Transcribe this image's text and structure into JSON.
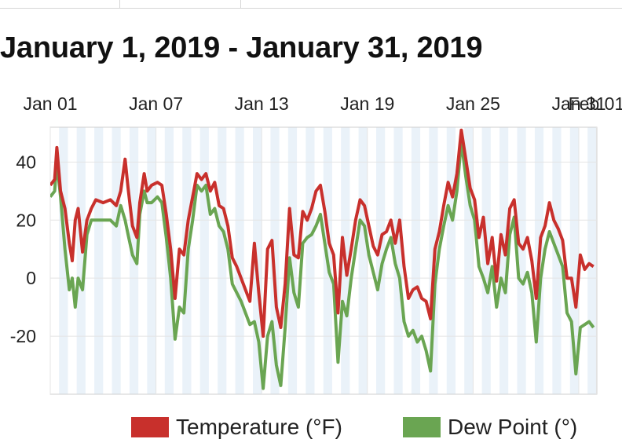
{
  "title": "January 1, 2019 - January 31, 2019",
  "colors": {
    "temperature": "#c8302c",
    "dew_point": "#6aa552",
    "band": "#eaf2f9",
    "grid": "#e4e4e4",
    "axis": "#cfcfcf"
  },
  "chart_data": {
    "type": "line",
    "title": "January 1, 2019 - January 31, 2019",
    "xlabel": "",
    "ylabel": "",
    "xlim": [
      "2019-01-01",
      "2019-02-01"
    ],
    "ylim": [
      -40,
      52
    ],
    "x_ticks": [
      {
        "date": "2019-01-01",
        "label": "Jan 01"
      },
      {
        "date": "2019-01-07",
        "label": "Jan 07"
      },
      {
        "date": "2019-01-13",
        "label": "Jan 13"
      },
      {
        "date": "2019-01-19",
        "label": "Jan 19"
      },
      {
        "date": "2019-01-25",
        "label": "Jan 25"
      },
      {
        "date": "2019-01-31",
        "label": "Jan 31"
      },
      {
        "date": "2019-02-01",
        "label": "Feb 01"
      }
    ],
    "y_ticks": [
      40,
      20,
      0,
      -20
    ],
    "grid": true,
    "legend": "bottom",
    "series": [
      {
        "name": "Temperature (°F)",
        "points": [
          [
            "2019-01-01T00:00",
            32
          ],
          [
            "2019-01-01T06:00",
            34
          ],
          [
            "2019-01-01T09:00",
            45
          ],
          [
            "2019-01-01T14:00",
            30
          ],
          [
            "2019-01-01T20:00",
            24
          ],
          [
            "2019-01-02T02:00",
            12
          ],
          [
            "2019-01-02T06:00",
            6
          ],
          [
            "2019-01-02T10:00",
            20
          ],
          [
            "2019-01-02T14:00",
            24
          ],
          [
            "2019-01-02T20:00",
            9
          ],
          [
            "2019-01-03T02:00",
            20
          ],
          [
            "2019-01-03T08:00",
            24
          ],
          [
            "2019-01-03T14:00",
            27
          ],
          [
            "2019-01-04T00:00",
            26
          ],
          [
            "2019-01-04T10:00",
            27
          ],
          [
            "2019-01-04T18:00",
            25
          ],
          [
            "2019-01-05T00:00",
            30
          ],
          [
            "2019-01-05T06:00",
            41
          ],
          [
            "2019-01-05T10:00",
            31
          ],
          [
            "2019-01-05T16:00",
            18
          ],
          [
            "2019-01-05T22:00",
            14
          ],
          [
            "2019-01-06T02:00",
            26
          ],
          [
            "2019-01-06T08:00",
            36
          ],
          [
            "2019-01-06T12:00",
            30
          ],
          [
            "2019-01-06T18:00",
            32
          ],
          [
            "2019-01-07T02:00",
            33
          ],
          [
            "2019-01-07T08:00",
            32
          ],
          [
            "2019-01-07T14:00",
            22
          ],
          [
            "2019-01-07T20:00",
            10
          ],
          [
            "2019-01-08T02:00",
            -7
          ],
          [
            "2019-01-08T08:00",
            10
          ],
          [
            "2019-01-08T14:00",
            8
          ],
          [
            "2019-01-08T20:00",
            20
          ],
          [
            "2019-01-09T02:00",
            28
          ],
          [
            "2019-01-09T08:00",
            36
          ],
          [
            "2019-01-09T14:00",
            34
          ],
          [
            "2019-01-09T20:00",
            36
          ],
          [
            "2019-01-10T02:00",
            30
          ],
          [
            "2019-01-10T08:00",
            33
          ],
          [
            "2019-01-10T14:00",
            25
          ],
          [
            "2019-01-10T20:00",
            24
          ],
          [
            "2019-01-11T02:00",
            18
          ],
          [
            "2019-01-11T08:00",
            7
          ],
          [
            "2019-01-11T14:00",
            4
          ],
          [
            "2019-01-11T20:00",
            0
          ],
          [
            "2019-01-12T02:00",
            -4
          ],
          [
            "2019-01-12T08:00",
            -8
          ],
          [
            "2019-01-12T14:00",
            12
          ],
          [
            "2019-01-12T20:00",
            -5
          ],
          [
            "2019-01-13T02:00",
            -20
          ],
          [
            "2019-01-13T08:00",
            10
          ],
          [
            "2019-01-13T14:00",
            13
          ],
          [
            "2019-01-13T20:00",
            -10
          ],
          [
            "2019-01-14T02:00",
            -17
          ],
          [
            "2019-01-14T08:00",
            -2
          ],
          [
            "2019-01-14T14:00",
            24
          ],
          [
            "2019-01-14T20:00",
            8
          ],
          [
            "2019-01-15T02:00",
            7
          ],
          [
            "2019-01-15T08:00",
            23
          ],
          [
            "2019-01-15T14:00",
            20
          ],
          [
            "2019-01-15T20:00",
            24
          ],
          [
            "2019-01-16T02:00",
            30
          ],
          [
            "2019-01-16T08:00",
            32
          ],
          [
            "2019-01-16T14:00",
            23
          ],
          [
            "2019-01-16T20:00",
            12
          ],
          [
            "2019-01-17T02:00",
            8
          ],
          [
            "2019-01-17T08:00",
            -12
          ],
          [
            "2019-01-17T14:00",
            14
          ],
          [
            "2019-01-17T20:00",
            1
          ],
          [
            "2019-01-18T02:00",
            10
          ],
          [
            "2019-01-18T08:00",
            20
          ],
          [
            "2019-01-18T14:00",
            27
          ],
          [
            "2019-01-18T20:00",
            25
          ],
          [
            "2019-01-19T02:00",
            18
          ],
          [
            "2019-01-19T08:00",
            11
          ],
          [
            "2019-01-19T14:00",
            8
          ],
          [
            "2019-01-19T20:00",
            15
          ],
          [
            "2019-01-20T02:00",
            16
          ],
          [
            "2019-01-20T08:00",
            20
          ],
          [
            "2019-01-20T14:00",
            12
          ],
          [
            "2019-01-20T20:00",
            20
          ],
          [
            "2019-01-21T02:00",
            4
          ],
          [
            "2019-01-21T08:00",
            -7
          ],
          [
            "2019-01-21T14:00",
            -4
          ],
          [
            "2019-01-21T20:00",
            -3
          ],
          [
            "2019-01-22T02:00",
            -7
          ],
          [
            "2019-01-22T08:00",
            -8
          ],
          [
            "2019-01-22T14:00",
            -14
          ],
          [
            "2019-01-22T20:00",
            10
          ],
          [
            "2019-01-23T02:00",
            16
          ],
          [
            "2019-01-23T08:00",
            25
          ],
          [
            "2019-01-23T14:00",
            33
          ],
          [
            "2019-01-23T20:00",
            28
          ],
          [
            "2019-01-24T02:00",
            36
          ],
          [
            "2019-01-24T08:00",
            51
          ],
          [
            "2019-01-24T14:00",
            41
          ],
          [
            "2019-01-24T20:00",
            31
          ],
          [
            "2019-01-25T02:00",
            27
          ],
          [
            "2019-01-25T08:00",
            14
          ],
          [
            "2019-01-25T14:00",
            21
          ],
          [
            "2019-01-25T20:00",
            5
          ],
          [
            "2019-01-26T02:00",
            14
          ],
          [
            "2019-01-26T08:00",
            -1
          ],
          [
            "2019-01-26T14:00",
            15
          ],
          [
            "2019-01-26T20:00",
            8
          ],
          [
            "2019-01-27T02:00",
            24
          ],
          [
            "2019-01-27T08:00",
            27
          ],
          [
            "2019-01-27T14:00",
            12
          ],
          [
            "2019-01-27T20:00",
            10
          ],
          [
            "2019-01-28T02:00",
            14
          ],
          [
            "2019-01-28T08:00",
            6
          ],
          [
            "2019-01-28T14:00",
            -7
          ],
          [
            "2019-01-28T20:00",
            14
          ],
          [
            "2019-01-29T02:00",
            18
          ],
          [
            "2019-01-29T08:00",
            26
          ],
          [
            "2019-01-29T14:00",
            20
          ],
          [
            "2019-01-29T20:00",
            17
          ],
          [
            "2019-01-30T02:00",
            13
          ],
          [
            "2019-01-30T08:00",
            0
          ],
          [
            "2019-01-30T14:00",
            0
          ],
          [
            "2019-01-30T20:00",
            -10
          ],
          [
            "2019-01-31T02:00",
            8
          ],
          [
            "2019-01-31T08:00",
            3
          ],
          [
            "2019-01-31T14:00",
            5
          ],
          [
            "2019-01-31T20:00",
            4
          ]
        ]
      },
      {
        "name": "Dew Point (°)",
        "points": [
          [
            "2019-01-01T00:00",
            28
          ],
          [
            "2019-01-01T06:00",
            30
          ],
          [
            "2019-01-01T09:00",
            40
          ],
          [
            "2019-01-01T14:00",
            28
          ],
          [
            "2019-01-01T20:00",
            10
          ],
          [
            "2019-01-02T02:00",
            -4
          ],
          [
            "2019-01-02T06:00",
            0
          ],
          [
            "2019-01-02T10:00",
            -10
          ],
          [
            "2019-01-02T14:00",
            0
          ],
          [
            "2019-01-02T20:00",
            -4
          ],
          [
            "2019-01-03T02:00",
            15
          ],
          [
            "2019-01-03T08:00",
            20
          ],
          [
            "2019-01-03T14:00",
            20
          ],
          [
            "2019-01-04T00:00",
            20
          ],
          [
            "2019-01-04T10:00",
            20
          ],
          [
            "2019-01-04T18:00",
            18
          ],
          [
            "2019-01-05T00:00",
            25
          ],
          [
            "2019-01-05T06:00",
            20
          ],
          [
            "2019-01-05T10:00",
            15
          ],
          [
            "2019-01-05T16:00",
            8
          ],
          [
            "2019-01-05T22:00",
            5
          ],
          [
            "2019-01-06T02:00",
            22
          ],
          [
            "2019-01-06T08:00",
            30
          ],
          [
            "2019-01-06T12:00",
            26
          ],
          [
            "2019-01-06T18:00",
            26
          ],
          [
            "2019-01-07T02:00",
            28
          ],
          [
            "2019-01-07T08:00",
            26
          ],
          [
            "2019-01-07T14:00",
            14
          ],
          [
            "2019-01-07T20:00",
            0
          ],
          [
            "2019-01-08T02:00",
            -21
          ],
          [
            "2019-01-08T08:00",
            -10
          ],
          [
            "2019-01-08T14:00",
            -12
          ],
          [
            "2019-01-08T20:00",
            10
          ],
          [
            "2019-01-09T02:00",
            20
          ],
          [
            "2019-01-09T08:00",
            32
          ],
          [
            "2019-01-09T14:00",
            30
          ],
          [
            "2019-01-09T20:00",
            32
          ],
          [
            "2019-01-10T02:00",
            22
          ],
          [
            "2019-01-10T08:00",
            24
          ],
          [
            "2019-01-10T14:00",
            18
          ],
          [
            "2019-01-10T20:00",
            16
          ],
          [
            "2019-01-11T02:00",
            10
          ],
          [
            "2019-01-11T08:00",
            -2
          ],
          [
            "2019-01-11T14:00",
            -5
          ],
          [
            "2019-01-11T20:00",
            -8
          ],
          [
            "2019-01-12T02:00",
            -12
          ],
          [
            "2019-01-12T08:00",
            -16
          ],
          [
            "2019-01-12T14:00",
            -15
          ],
          [
            "2019-01-12T20:00",
            -22
          ],
          [
            "2019-01-13T02:00",
            -38
          ],
          [
            "2019-01-13T08:00",
            -20
          ],
          [
            "2019-01-13T14:00",
            -15
          ],
          [
            "2019-01-13T20:00",
            -30
          ],
          [
            "2019-01-14T02:00",
            -37
          ],
          [
            "2019-01-14T08:00",
            -17
          ],
          [
            "2019-01-14T14:00",
            7
          ],
          [
            "2019-01-14T20:00",
            -5
          ],
          [
            "2019-01-15T02:00",
            -10
          ],
          [
            "2019-01-15T08:00",
            12
          ],
          [
            "2019-01-15T14:00",
            14
          ],
          [
            "2019-01-15T20:00",
            15
          ],
          [
            "2019-01-16T02:00",
            18
          ],
          [
            "2019-01-16T08:00",
            22
          ],
          [
            "2019-01-16T14:00",
            12
          ],
          [
            "2019-01-16T20:00",
            2
          ],
          [
            "2019-01-17T02:00",
            -2
          ],
          [
            "2019-01-17T08:00",
            -29
          ],
          [
            "2019-01-17T14:00",
            -8
          ],
          [
            "2019-01-17T20:00",
            -13
          ],
          [
            "2019-01-18T02:00",
            0
          ],
          [
            "2019-01-18T08:00",
            10
          ],
          [
            "2019-01-18T14:00",
            20
          ],
          [
            "2019-01-18T20:00",
            18
          ],
          [
            "2019-01-19T02:00",
            8
          ],
          [
            "2019-01-19T08:00",
            2
          ],
          [
            "2019-01-19T14:00",
            -4
          ],
          [
            "2019-01-19T20:00",
            5
          ],
          [
            "2019-01-20T02:00",
            10
          ],
          [
            "2019-01-20T08:00",
            14
          ],
          [
            "2019-01-20T14:00",
            5
          ],
          [
            "2019-01-20T20:00",
            0
          ],
          [
            "2019-01-21T02:00",
            -15
          ],
          [
            "2019-01-21T08:00",
            -20
          ],
          [
            "2019-01-21T14:00",
            -18
          ],
          [
            "2019-01-21T20:00",
            -22
          ],
          [
            "2019-01-22T02:00",
            -20
          ],
          [
            "2019-01-22T08:00",
            -25
          ],
          [
            "2019-01-22T14:00",
            -32
          ],
          [
            "2019-01-22T20:00",
            -2
          ],
          [
            "2019-01-23T02:00",
            10
          ],
          [
            "2019-01-23T08:00",
            18
          ],
          [
            "2019-01-23T14:00",
            25
          ],
          [
            "2019-01-23T20:00",
            20
          ],
          [
            "2019-01-24T02:00",
            30
          ],
          [
            "2019-01-24T08:00",
            47
          ],
          [
            "2019-01-24T14:00",
            35
          ],
          [
            "2019-01-24T20:00",
            25
          ],
          [
            "2019-01-25T02:00",
            20
          ],
          [
            "2019-01-25T08:00",
            4
          ],
          [
            "2019-01-25T14:00",
            0
          ],
          [
            "2019-01-25T20:00",
            -5
          ],
          [
            "2019-01-26T02:00",
            4
          ],
          [
            "2019-01-26T08:00",
            -10
          ],
          [
            "2019-01-26T14:00",
            0
          ],
          [
            "2019-01-26T20:00",
            -5
          ],
          [
            "2019-01-27T02:00",
            15
          ],
          [
            "2019-01-27T08:00",
            21
          ],
          [
            "2019-01-27T14:00",
            0
          ],
          [
            "2019-01-27T20:00",
            -2
          ],
          [
            "2019-01-28T02:00",
            2
          ],
          [
            "2019-01-28T08:00",
            -5
          ],
          [
            "2019-01-28T14:00",
            -22
          ],
          [
            "2019-01-28T20:00",
            0
          ],
          [
            "2019-01-29T02:00",
            10
          ],
          [
            "2019-01-29T08:00",
            16
          ],
          [
            "2019-01-29T14:00",
            12
          ],
          [
            "2019-01-29T20:00",
            8
          ],
          [
            "2019-01-30T02:00",
            4
          ],
          [
            "2019-01-30T08:00",
            -12
          ],
          [
            "2019-01-30T14:00",
            -15
          ],
          [
            "2019-01-30T20:00",
            -33
          ],
          [
            "2019-01-31T02:00",
            -17
          ],
          [
            "2019-01-31T08:00",
            -16
          ],
          [
            "2019-01-31T14:00",
            -15
          ],
          [
            "2019-01-31T20:00",
            -17
          ]
        ]
      }
    ]
  }
}
